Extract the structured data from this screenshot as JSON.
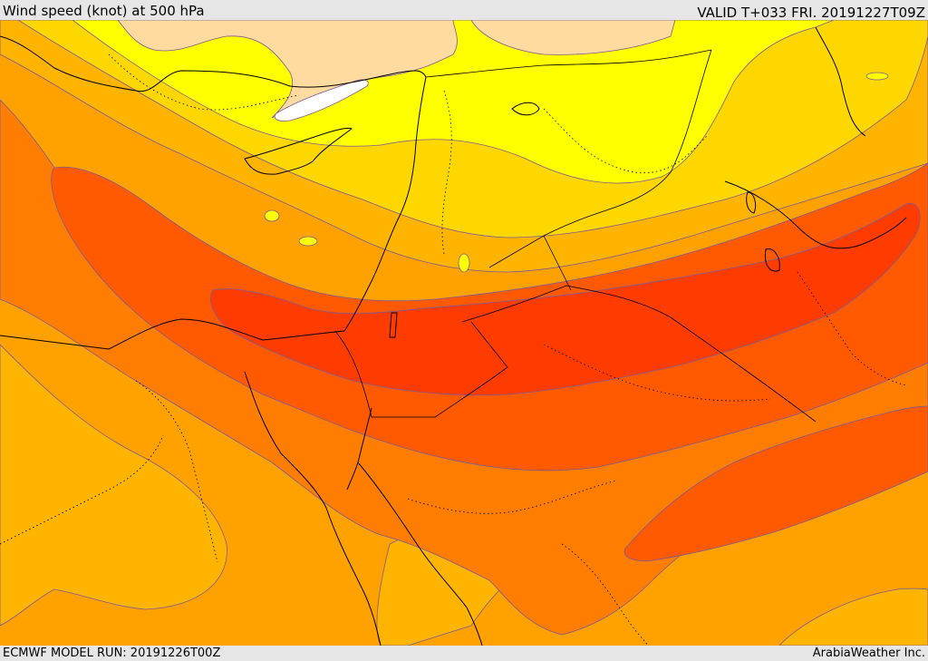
{
  "header": {
    "title": "Wind speed (knot) at 500 hPa",
    "valid": "VALID T+033 FRI. 20191227T09Z"
  },
  "footer": {
    "model_run": "ECMWF MODEL RUN: 20191226T00Z",
    "credit": "ArabiaWeather Inc."
  },
  "colors": {
    "band_lightest": "#ffffff",
    "band_peach": "#ffdba0",
    "band_yellow": "#ffff00",
    "band_gold": "#ffd700",
    "band_amber": "#ffb400",
    "band_orange": "#ffa200",
    "band_dark_orange": "#ff7d00",
    "band_red_orange": "#ff5a00",
    "band_red": "#ff3c00",
    "contour_line": "#7a5a9a",
    "coastline": "#000000"
  }
}
